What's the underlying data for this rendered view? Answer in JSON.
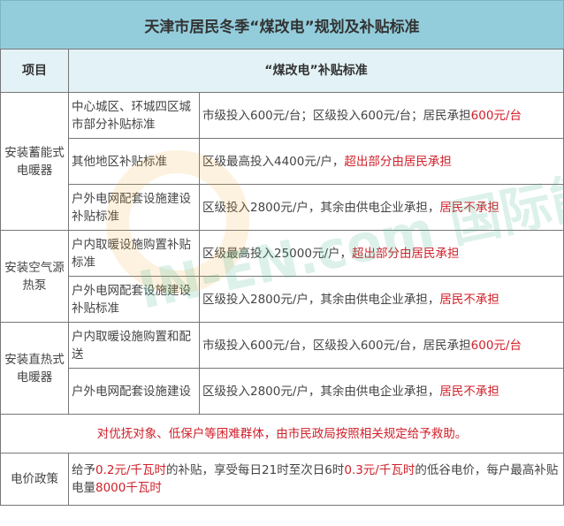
{
  "title": "天津市居民冬季“煤改电”规划及补贴标准",
  "header": {
    "item": "项目",
    "standard": "“煤改电”补贴标准"
  },
  "groups": [
    {
      "name": "安装蓄能式电暖器",
      "rows": [
        {
          "sub": "中心城区、环城四区城市部分补贴标准",
          "text": "市级投入600元/台；区级投入600元/台；居民承担",
          "red": "600元/台"
        },
        {
          "sub": "其他地区补贴标准",
          "text": "区级最高投入4400元/户，",
          "red": "超出部分由居民承担"
        },
        {
          "sub": "户外电网配套设施建设补贴标准",
          "text": "区级投入2800元/户，其余由供电企业承担，",
          "red": "居民不承担"
        }
      ]
    },
    {
      "name": "安装空气源热泵",
      "rows": [
        {
          "sub": "户内取暖设施购置补贴标准",
          "text": "区级最高投入25000元/户，",
          "red": "超出部分由居民承担"
        },
        {
          "sub": "户外电网配套设施建设补贴标准",
          "text": "区级投入2800元/户，其余由供电企业承担，",
          "red": "居民不承担"
        }
      ]
    },
    {
      "name": "安装直热式电暖器",
      "rows": [
        {
          "sub": "户内取暖设施购置和配送",
          "text": "市级投入600元/台，区级投入600元/台，居民承担",
          "red": "600元/台"
        },
        {
          "sub": "户外电网配套设施建设",
          "text": "区级投入2800元/户，其余由供电企业承担，",
          "red": "居民不承担"
        }
      ]
    }
  ],
  "notice": "对优抚对象、低保户等困难群体，由市民政局按照相关规定给予救助。",
  "price": {
    "label": "电价政策",
    "p1": "给予",
    "r1": "0.2元/千瓦时",
    "p2": "的补贴，享受每日21时至次日6时",
    "r2": "0.3元/千瓦时",
    "p3": "的低谷电价，每户最高补贴电量",
    "r3": "8000千瓦时"
  },
  "watermark": "IN-EN.com 国际能源网",
  "colors": {
    "title_bg": "#93cddc",
    "header_bg": "#e3f2f6",
    "highlight": "#d0202a"
  }
}
